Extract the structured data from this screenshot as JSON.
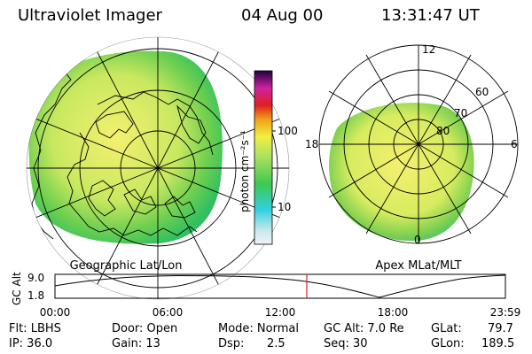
{
  "header": {
    "instrument": "Ultraviolet Imager",
    "date": "04 Aug 00",
    "time": "13:31:47 UT"
  },
  "left_panel": {
    "caption": "Geographic Lat/Lon"
  },
  "right_panel": {
    "caption": "Apex MLat/MLT",
    "mlt_labels": [
      "12",
      "18",
      "6",
      "0"
    ],
    "mlat_labels": [
      "60",
      "70",
      "80"
    ]
  },
  "colorbar": {
    "unit_label": "photon cm⁻²s⁻¹",
    "ticks": [
      "100",
      "10"
    ],
    "scale": "log",
    "colors": [
      "#f0f4f4",
      "#30d0e0",
      "#40c850",
      "#a8e060",
      "#f0f040",
      "#f0a018",
      "#e02020",
      "#d020a0",
      "#200040"
    ]
  },
  "orbit_plot": {
    "y_label": "GC Alt",
    "y_ticks": [
      "9.0",
      "1.8"
    ],
    "x_ticks": [
      "00:00",
      "06:00",
      "12:00",
      "18:00",
      "23:59"
    ],
    "current_time_marker_color": "#e02020"
  },
  "status": {
    "flt": "Flt: LBHS",
    "ip": "IP: 36.0",
    "door": "Door: Open",
    "gain": "Gain: 13",
    "mode": "Mode: Normal",
    "dsp_label": "Dsp:",
    "dsp_value": "2.5",
    "gc_alt": "GC Alt: 7.0 Re",
    "seq": "Seq: 30",
    "glat_label": "GLat:",
    "glat_value": "79.7",
    "glon_label": "GLon:",
    "glon_value": "189.5"
  }
}
